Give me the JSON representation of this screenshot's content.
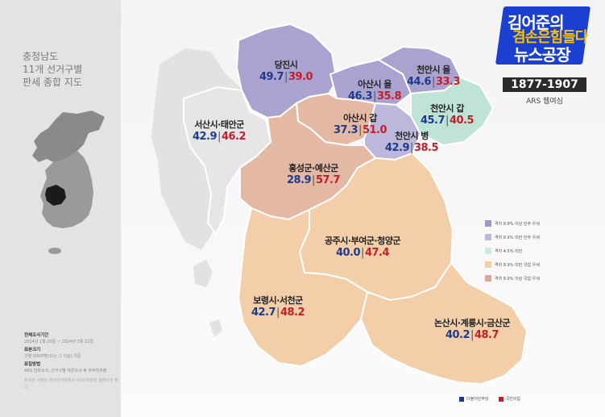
{
  "sidebar": {
    "title_lines": [
      "충청남도",
      "11개 선거구별",
      "판세 종합 지도"
    ],
    "info": {
      "period_label": "전체조사기간",
      "period_value": "2024년 1월 20일 ~ 2024년 3월 22일",
      "sample_label": "표본크기",
      "sample_value": "구별 500여명(또는 그 이상) 기준",
      "method_label": "표집방법",
      "method_value": "ARS 전화조사, 선거구별 여론조사 후 무작위추출",
      "note": "자세한 사항은 중앙선거여론조사심의위원회 홈페이지 참고"
    }
  },
  "logo": {
    "line1": "김어준의",
    "line2": "겸손은힘들다",
    "line3": "뉴스공장"
  },
  "ars": {
    "code": "1877-1907",
    "label": "ARS 웹여심"
  },
  "colors": {
    "dem_dark": "#aaa3d0",
    "dem_light": "#bcb8db",
    "close": "#bfe4d6",
    "ppp_light": "#f2cfa8",
    "ppp_dark": "#e4b9a3",
    "dem_text": "#1f3a8a",
    "ppp_text": "#c41e2a"
  },
  "legend": [
    {
      "label": "격차 8.9% 이상 민주 우세",
      "color": "#9f97c9"
    },
    {
      "label": "격차 8.9% 미만 민주 우세",
      "color": "#bcb8db"
    },
    {
      "label": "격차 4.5% 미만",
      "color": "#cfe8df"
    },
    {
      "label": "격차 8.9% 미만 국힘 우세",
      "color": "#f2cfa8"
    },
    {
      "label": "격차 8.9% 이상 국힘 우세",
      "color": "#d9a898"
    }
  ],
  "parties": [
    {
      "label": "더불어민주당",
      "color": "#1f3a8a"
    },
    {
      "label": "국민의힘",
      "color": "#c41e2a"
    }
  ],
  "districts": [
    {
      "name": "당진시",
      "dem": "49.7",
      "ppp": "39.0"
    },
    {
      "name": "천안시 을",
      "dem": "44.6",
      "ppp": "33.3"
    },
    {
      "name": "아산시 을",
      "dem": "46.3",
      "ppp": "35.8"
    },
    {
      "name": "천안시 갑",
      "dem": "45.7",
      "ppp": "40.5"
    },
    {
      "name": "서산시·태안군",
      "dem": "42.9",
      "ppp": "46.2"
    },
    {
      "name": "아산시 갑",
      "dem": "37.3",
      "ppp": "51.0"
    },
    {
      "name": "천안시 병",
      "dem": "42.9",
      "ppp": "38.5"
    },
    {
      "name": "홍성군·예산군",
      "dem": "28.9",
      "ppp": "57.7"
    },
    {
      "name": "공주시·부여군·청양군",
      "dem": "40.0",
      "ppp": "47.4"
    },
    {
      "name": "보령시·서천군",
      "dem": "42.7",
      "ppp": "48.2"
    },
    {
      "name": "논산시·계룡시·금산군",
      "dem": "40.2",
      "ppp": "48.7"
    }
  ]
}
